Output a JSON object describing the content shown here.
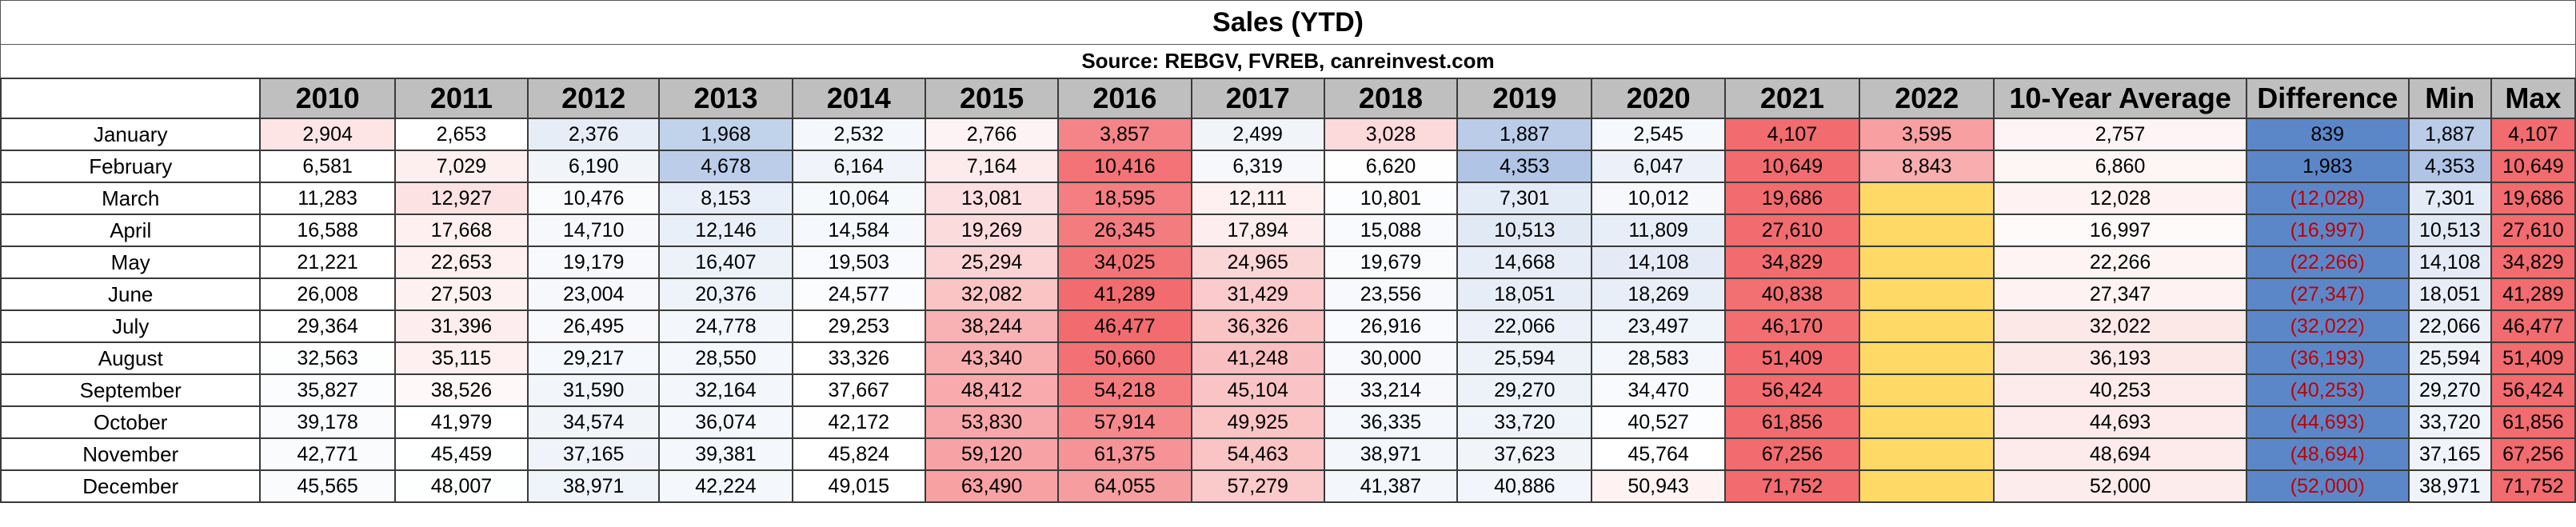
{
  "title": "Sales (YTD)",
  "subtitle": "Source: REBGV, FVREB, canreinvest.com",
  "colors": {
    "low": "#5b87c9",
    "mid": "#ffffff",
    "high": "#f26b6e",
    "highlight_yellow": "#ffd966",
    "negative_text": "#c00000",
    "header_bg": "#bfbfbf"
  },
  "chart_data": {
    "type": "table",
    "title": "Sales (YTD)",
    "subtitle": "Source: REBGV, FVREB, canreinvest.com",
    "columns": [
      "2010",
      "2011",
      "2012",
      "2013",
      "2014",
      "2015",
      "2016",
      "2017",
      "2018",
      "2019",
      "2020",
      "2021",
      "2022",
      "10-Year Average",
      "Difference",
      "Min",
      "Max"
    ],
    "rows": [
      {
        "month": "January",
        "cells": [
          "2,904",
          "2,653",
          "2,376",
          "1,968",
          "2,532",
          "2,766",
          "3,857",
          "2,499",
          "3,028",
          "1,887",
          "2,545",
          "4,107",
          "3,595",
          "2,757",
          "839",
          "1,887",
          "4,107"
        ]
      },
      {
        "month": "February",
        "cells": [
          "6,581",
          "7,029",
          "6,190",
          "4,678",
          "6,164",
          "7,164",
          "10,416",
          "6,319",
          "6,620",
          "4,353",
          "6,047",
          "10,649",
          "8,843",
          "6,860",
          "1,983",
          "4,353",
          "10,649"
        ]
      },
      {
        "month": "March",
        "cells": [
          "11,283",
          "12,927",
          "10,476",
          "8,153",
          "10,064",
          "13,081",
          "18,595",
          "12,111",
          "10,801",
          "7,301",
          "10,012",
          "19,686",
          "",
          "12,028",
          "(12,028)",
          "7,301",
          "19,686"
        ]
      },
      {
        "month": "April",
        "cells": [
          "16,588",
          "17,668",
          "14,710",
          "12,146",
          "14,584",
          "19,269",
          "26,345",
          "17,894",
          "15,088",
          "10,513",
          "11,809",
          "27,610",
          "",
          "16,997",
          "(16,997)",
          "10,513",
          "27,610"
        ]
      },
      {
        "month": "May",
        "cells": [
          "21,221",
          "22,653",
          "19,179",
          "16,407",
          "19,503",
          "25,294",
          "34,025",
          "24,965",
          "19,679",
          "14,668",
          "14,108",
          "34,829",
          "",
          "22,266",
          "(22,266)",
          "14,108",
          "34,829"
        ]
      },
      {
        "month": "June",
        "cells": [
          "26,008",
          "27,503",
          "23,004",
          "20,376",
          "24,577",
          "32,082",
          "41,289",
          "31,429",
          "23,556",
          "18,051",
          "18,269",
          "40,838",
          "",
          "27,347",
          "(27,347)",
          "18,051",
          "41,289"
        ]
      },
      {
        "month": "July",
        "cells": [
          "29,364",
          "31,396",
          "26,495",
          "24,778",
          "29,253",
          "38,244",
          "46,477",
          "36,326",
          "26,916",
          "22,066",
          "23,497",
          "46,170",
          "",
          "32,022",
          "(32,022)",
          "22,066",
          "46,477"
        ]
      },
      {
        "month": "August",
        "cells": [
          "32,563",
          "35,115",
          "29,217",
          "28,550",
          "33,326",
          "43,340",
          "50,660",
          "41,248",
          "30,000",
          "25,594",
          "28,583",
          "51,409",
          "",
          "36,193",
          "(36,193)",
          "25,594",
          "51,409"
        ]
      },
      {
        "month": "September",
        "cells": [
          "35,827",
          "38,526",
          "31,590",
          "32,164",
          "37,667",
          "48,412",
          "54,218",
          "45,104",
          "33,214",
          "29,270",
          "34,470",
          "56,424",
          "",
          "40,253",
          "(40,253)",
          "29,270",
          "56,424"
        ]
      },
      {
        "month": "October",
        "cells": [
          "39,178",
          "41,979",
          "34,574",
          "36,074",
          "42,172",
          "53,830",
          "57,914",
          "49,925",
          "36,335",
          "33,720",
          "40,527",
          "61,856",
          "",
          "44,693",
          "(44,693)",
          "33,720",
          "61,856"
        ]
      },
      {
        "month": "November",
        "cells": [
          "42,771",
          "45,459",
          "37,165",
          "39,381",
          "45,824",
          "59,120",
          "61,375",
          "54,463",
          "38,971",
          "37,623",
          "45,764",
          "67,256",
          "",
          "48,694",
          "(48,694)",
          "37,165",
          "67,256"
        ]
      },
      {
        "month": "December",
        "cells": [
          "45,565",
          "48,007",
          "38,971",
          "42,224",
          "49,015",
          "63,490",
          "64,055",
          "57,279",
          "41,387",
          "40,886",
          "50,943",
          "71,752",
          "",
          "52,000",
          "(52,000)",
          "38,971",
          "71,752"
        ]
      }
    ]
  }
}
